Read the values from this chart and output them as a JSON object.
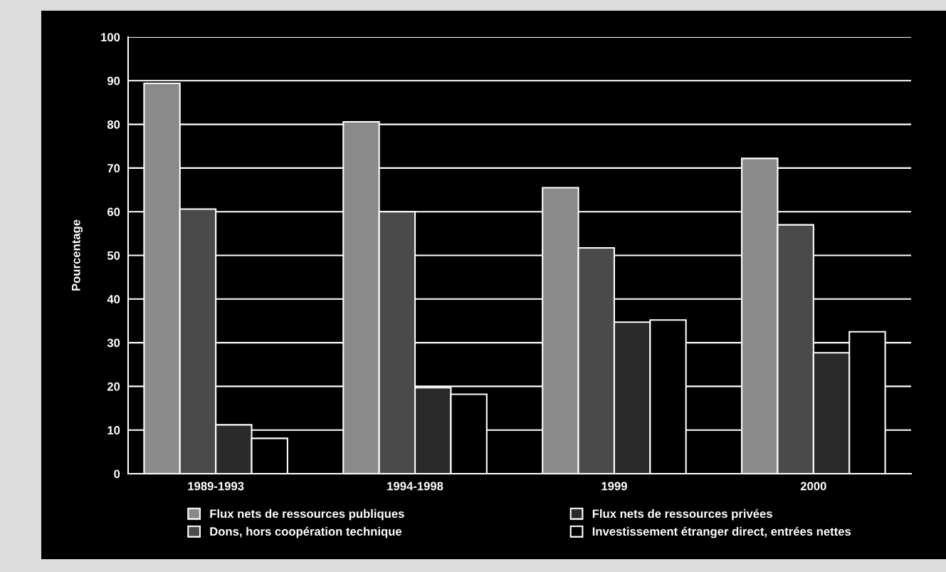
{
  "chart_data": {
    "type": "bar",
    "ylabel": "Pourcentage",
    "categories": [
      "1989-1993",
      "1994-1998",
      "1999",
      "2000"
    ],
    "series": [
      {
        "name": "Flux nets de ressources publiques",
        "color": "#8a8a8a",
        "values": [
          89.4,
          80.6,
          65.5,
          72.2
        ]
      },
      {
        "name": "Dons, hors coopération technique",
        "color": "#4a4a4a",
        "values": [
          60.6,
          60.0,
          51.7,
          57.0
        ]
      },
      {
        "name": "Flux nets de ressources privées",
        "color": "#2a2a2a",
        "values": [
          11.2,
          19.7,
          34.7,
          27.7
        ]
      },
      {
        "name": "Investissement étranger direct, entrées nettes",
        "color": "#000000",
        "values": [
          8.1,
          18.2,
          35.2,
          32.5
        ]
      }
    ],
    "ylim": [
      0,
      100
    ],
    "yticks": [
      0,
      10,
      20,
      30,
      40,
      50,
      60,
      70,
      80,
      90,
      100
    ],
    "grid": "y",
    "legend": "bottom"
  }
}
